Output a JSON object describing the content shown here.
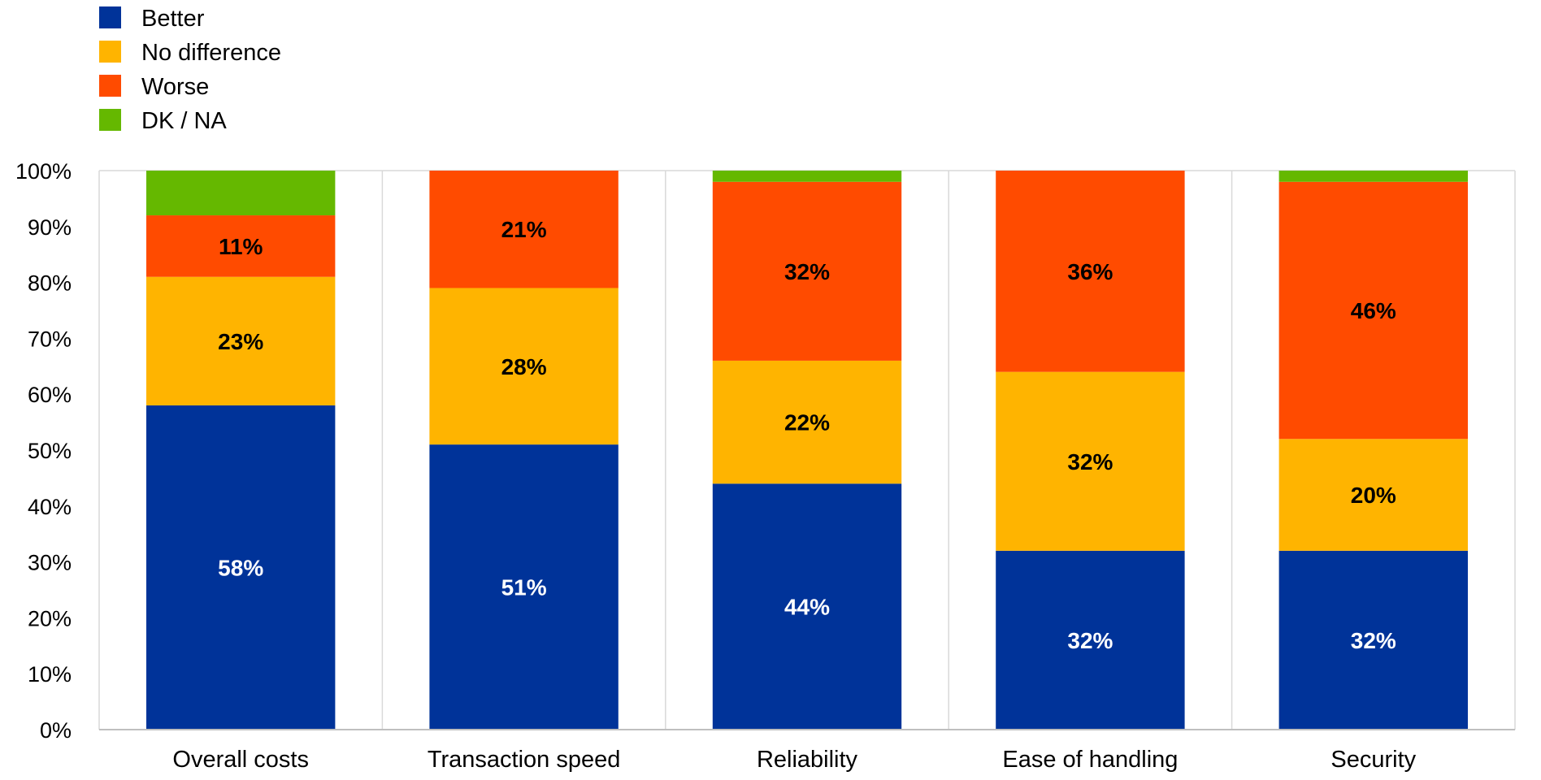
{
  "chart_data": {
    "type": "bar",
    "stacked": true,
    "orientation": "vertical",
    "categories": [
      "Overall costs",
      "Transaction speed",
      "Reliability",
      "Ease of handling",
      "Security"
    ],
    "series": [
      {
        "name": "Better",
        "color": "#003399",
        "values": [
          58,
          51,
          44,
          32,
          32
        ],
        "labels": [
          "58%",
          "51%",
          "44%",
          "32%",
          "32%"
        ],
        "label_color": "#ffffff"
      },
      {
        "name": "No difference",
        "color": "#FFB400",
        "values": [
          23,
          28,
          22,
          32,
          20
        ],
        "labels": [
          "23%",
          "28%",
          "22%",
          "32%",
          "20%"
        ],
        "label_color": "#000000"
      },
      {
        "name": "Worse",
        "color": "#FF4B00",
        "values": [
          11,
          21,
          32,
          36,
          46
        ],
        "labels": [
          "11%",
          "21%",
          "32%",
          "36%",
          "46%"
        ],
        "label_color": "#000000"
      },
      {
        "name": "DK / NA",
        "color": "#65B800",
        "values": [
          8,
          0,
          2,
          0,
          2
        ],
        "labels": [
          "",
          "",
          "",
          "",
          ""
        ],
        "label_color": "#000000"
      }
    ],
    "ylim": [
      0,
      100
    ],
    "yticks": [
      0,
      10,
      20,
      30,
      40,
      50,
      60,
      70,
      80,
      90,
      100
    ],
    "ytick_labels": [
      "0%",
      "10%",
      "20%",
      "30%",
      "40%",
      "50%",
      "60%",
      "70%",
      "80%",
      "90%",
      "100%"
    ],
    "grid": true,
    "grid_axis": "vertical-category-separators",
    "legend_position": "top-left",
    "title": "",
    "xlabel": "",
    "ylabel": ""
  }
}
